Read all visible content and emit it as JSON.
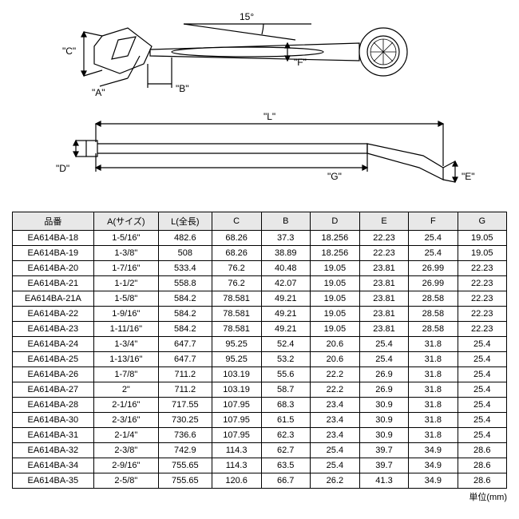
{
  "diagram": {
    "angle_label": "15°",
    "dims": {
      "A": "\"A\"",
      "B": "\"B\"",
      "C": "\"C\"",
      "D": "\"D\"",
      "E": "\"E\"",
      "F": "\"F\"",
      "G": "\"G\"",
      "L": "\"L\""
    },
    "stroke": "#000000",
    "fill": "#ffffff",
    "font_size": 11
  },
  "table": {
    "headers": [
      "品番",
      "A(サイズ)",
      "L(全長)",
      "C",
      "B",
      "D",
      "E",
      "F",
      "G"
    ],
    "header_bg": "#e8e8e8",
    "border_color": "#000000",
    "font_size": 11,
    "rows": [
      [
        "EA614BA-18",
        "1-5/16\"",
        "482.6",
        "68.26",
        "37.3",
        "18.256",
        "22.23",
        "25.4",
        "19.05"
      ],
      [
        "EA614BA-19",
        "1-3/8\"",
        "508",
        "68.26",
        "38.89",
        "18.256",
        "22.23",
        "25.4",
        "19.05"
      ],
      [
        "EA614BA-20",
        "1-7/16\"",
        "533.4",
        "76.2",
        "40.48",
        "19.05",
        "23.81",
        "26.99",
        "22.23"
      ],
      [
        "EA614BA-21",
        "1-1/2\"",
        "558.8",
        "76.2",
        "42.07",
        "19.05",
        "23.81",
        "26.99",
        "22.23"
      ],
      [
        "EA614BA-21A",
        "1-5/8\"",
        "584.2",
        "78.581",
        "49.21",
        "19.05",
        "23.81",
        "28.58",
        "22.23"
      ],
      [
        "EA614BA-22",
        "1-9/16\"",
        "584.2",
        "78.581",
        "49.21",
        "19.05",
        "23.81",
        "28.58",
        "22.23"
      ],
      [
        "EA614BA-23",
        "1-11/16\"",
        "584.2",
        "78.581",
        "49.21",
        "19.05",
        "23.81",
        "28.58",
        "22.23"
      ],
      [
        "EA614BA-24",
        "1-3/4\"",
        "647.7",
        "95.25",
        "52.4",
        "20.6",
        "25.4",
        "31.8",
        "25.4"
      ],
      [
        "EA614BA-25",
        "1-13/16\"",
        "647.7",
        "95.25",
        "53.2",
        "20.6",
        "25.4",
        "31.8",
        "25.4"
      ],
      [
        "EA614BA-26",
        "1-7/8\"",
        "711.2",
        "103.19",
        "55.6",
        "22.2",
        "26.9",
        "31.8",
        "25.4"
      ],
      [
        "EA614BA-27",
        "2\"",
        "711.2",
        "103.19",
        "58.7",
        "22.2",
        "26.9",
        "31.8",
        "25.4"
      ],
      [
        "EA614BA-28",
        "2-1/16\"",
        "717.55",
        "107.95",
        "68.3",
        "23.4",
        "30.9",
        "31.8",
        "25.4"
      ],
      [
        "EA614BA-30",
        "2-3/16\"",
        "730.25",
        "107.95",
        "61.5",
        "23.4",
        "30.9",
        "31.8",
        "25.4"
      ],
      [
        "EA614BA-31",
        "2-1/4\"",
        "736.6",
        "107.95",
        "62.3",
        "23.4",
        "30.9",
        "31.8",
        "25.4"
      ],
      [
        "EA614BA-32",
        "2-3/8\"",
        "742.9",
        "114.3",
        "62.7",
        "25.4",
        "39.7",
        "34.9",
        "28.6"
      ],
      [
        "EA614BA-34",
        "2-9/16\"",
        "755.65",
        "114.3",
        "63.5",
        "25.4",
        "39.7",
        "34.9",
        "28.6"
      ],
      [
        "EA614BA-35",
        "2-5/8\"",
        "755.65",
        "120.6",
        "66.7",
        "26.2",
        "41.3",
        "34.9",
        "28.6"
      ]
    ]
  },
  "unit_note": "単位(mm)"
}
